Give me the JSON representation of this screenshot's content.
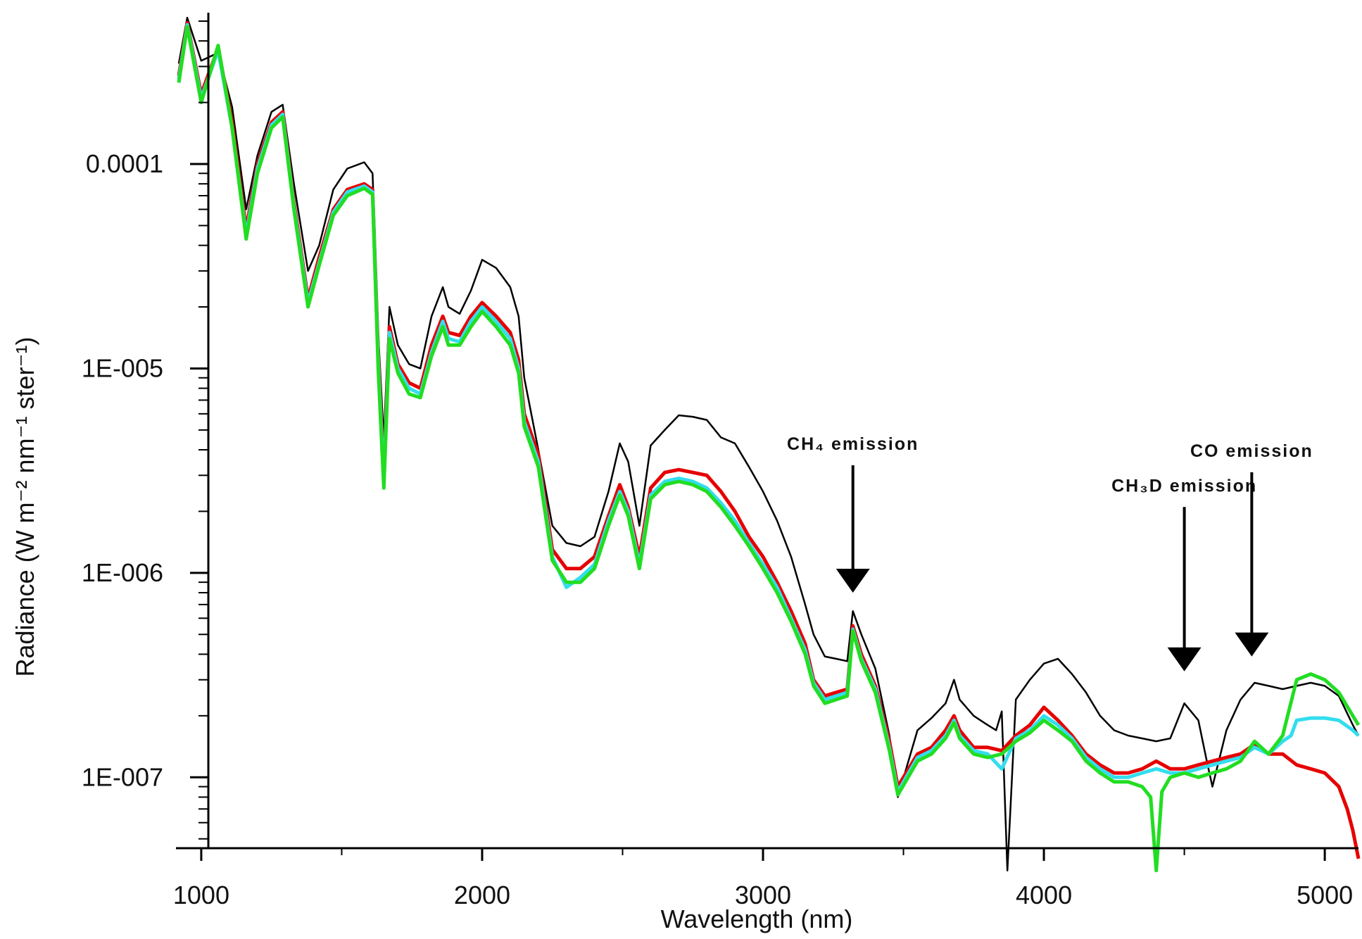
{
  "chart_data": {
    "type": "line",
    "title": "",
    "xlabel": "Wavelength (nm)",
    "ylabel": "Radiance (W m⁻² nm⁻¹ ster⁻¹)",
    "xlim": [
      920,
      5120
    ],
    "ylim": [
      4.5e-08,
      0.00055
    ],
    "yscale": "log",
    "x_ticks": [
      1000,
      2000,
      3000,
      4000,
      5000
    ],
    "x_tick_labels": [
      "1000",
      "2000",
      "3000",
      "4000",
      "5000"
    ],
    "y_ticks": [
      0.0001,
      1e-05,
      1e-06,
      1e-07
    ],
    "y_tick_labels": [
      "0.0001",
      "1E-005",
      "1E-006",
      "1E-007"
    ],
    "grid": false,
    "legend": "none",
    "annotations": [
      {
        "text": "CH₄ emission",
        "x": 3320,
        "y": 4e-06,
        "arrow_to_y": 8e-07
      },
      {
        "text": "CH₃D emission",
        "x": 4500,
        "y": 2.5e-06,
        "arrow_to_y": 3.3e-07
      },
      {
        "text": "CO emission",
        "x": 4740,
        "y": 3.7e-06,
        "arrow_to_y": 3.9e-07
      }
    ],
    "series": [
      {
        "color": "#000000",
        "x": [
          920,
          950,
          1000,
          1060,
          1110,
          1160,
          1200,
          1250,
          1290,
          1330,
          1380,
          1420,
          1470,
          1520,
          1580,
          1610,
          1630,
          1650,
          1670,
          1700,
          1740,
          1780,
          1820,
          1860,
          1880,
          1920,
          1960,
          2000,
          2050,
          2100,
          2130,
          2150,
          2200,
          2250,
          2300,
          2350,
          2400,
          2450,
          2490,
          2520,
          2560,
          2600,
          2650,
          2700,
          2750,
          2800,
          2850,
          2900,
          2950,
          3000,
          3050,
          3100,
          3150,
          3180,
          3220,
          3260,
          3300,
          3320,
          3350,
          3400,
          3450,
          3480,
          3550,
          3600,
          3650,
          3680,
          3700,
          3750,
          3800,
          3830,
          3850,
          3870,
          3900,
          3950,
          4000,
          4050,
          4100,
          4150,
          4200,
          4250,
          4300,
          4350,
          4400,
          4450,
          4500,
          4550,
          4580,
          4600,
          4650,
          4700,
          4750,
          4800,
          4850,
          4900,
          4950,
          5000,
          5050,
          5100,
          5120
        ],
        "y": [
          0.00031,
          0.00052,
          0.00032,
          0.00035,
          0.00019,
          6e-05,
          0.00011,
          0.00018,
          0.000195,
          8e-05,
          3e-05,
          4e-05,
          7.5e-05,
          9.5e-05,
          0.000102,
          9e-05,
          1.5e-05,
          4.5e-06,
          2e-05,
          1.3e-05,
          1.05e-05,
          1e-05,
          1.8e-05,
          2.5e-05,
          2e-05,
          1.85e-05,
          2.4e-05,
          3.4e-05,
          3.1e-05,
          2.5e-05,
          1.8e-05,
          9e-06,
          4e-06,
          1.7e-06,
          1.4e-06,
          1.35e-06,
          1.5e-06,
          2.5e-06,
          4.3e-06,
          3.5e-06,
          1.7e-06,
          4.2e-06,
          5e-06,
          5.9e-06,
          5.8e-06,
          5.6e-06,
          4.6e-06,
          4.3e-06,
          3.3e-06,
          2.5e-06,
          1.8e-06,
          1.2e-06,
          7e-07,
          5e-07,
          3.9e-07,
          3.8e-07,
          3.7e-07,
          6.5e-07,
          5e-07,
          3.4e-07,
          1.6e-07,
          8e-08,
          1.7e-07,
          1.95e-07,
          2.3e-07,
          3e-07,
          2.4e-07,
          2e-07,
          1.8e-07,
          1.7e-07,
          2.1e-07,
          3.5e-08,
          2.4e-07,
          3e-07,
          3.6e-07,
          3.8e-07,
          3.2e-07,
          2.6e-07,
          2e-07,
          1.7e-07,
          1.6e-07,
          1.55e-07,
          1.5e-07,
          1.55e-07,
          2.3e-07,
          1.9e-07,
          1.2e-07,
          9e-08,
          1.7e-07,
          2.4e-07,
          2.9e-07,
          2.8e-07,
          2.7e-07,
          2.8e-07,
          2.9e-07,
          2.8e-07,
          2.5e-07,
          1.8e-07,
          1.6e-07
        ]
      },
      {
        "color": "#e60000",
        "x": [
          920,
          950,
          1000,
          1060,
          1110,
          1160,
          1200,
          1250,
          1290,
          1330,
          1380,
          1420,
          1470,
          1520,
          1580,
          1610,
          1630,
          1650,
          1670,
          1700,
          1740,
          1780,
          1820,
          1860,
          1880,
          1920,
          1960,
          2000,
          2050,
          2100,
          2130,
          2150,
          2200,
          2250,
          2300,
          2350,
          2400,
          2450,
          2490,
          2520,
          2560,
          2600,
          2650,
          2700,
          2750,
          2800,
          2850,
          2900,
          2950,
          3000,
          3050,
          3100,
          3150,
          3180,
          3220,
          3260,
          3300,
          3320,
          3350,
          3400,
          3450,
          3480,
          3550,
          3600,
          3650,
          3680,
          3700,
          3750,
          3800,
          3850,
          3900,
          3950,
          4000,
          4050,
          4100,
          4150,
          4200,
          4250,
          4300,
          4350,
          4400,
          4450,
          4500,
          4550,
          4600,
          4650,
          4700,
          4750,
          4800,
          4850,
          4900,
          4950,
          5000,
          5050,
          5080,
          5100,
          5120
        ],
        "y": [
          0.00027,
          0.00049,
          0.00022,
          0.00037,
          0.00016,
          4.8e-05,
          0.0001,
          0.00016,
          0.00018,
          6.5e-05,
          2.2e-05,
          3.5e-05,
          6e-05,
          7.5e-05,
          8e-05,
          7.5e-05,
          1.2e-05,
          3e-06,
          1.6e-05,
          1.05e-05,
          8.5e-06,
          8e-06,
          1.3e-05,
          1.8e-05,
          1.5e-05,
          1.45e-05,
          1.8e-05,
          2.1e-05,
          1.8e-05,
          1.5e-05,
          1.1e-05,
          6e-06,
          3.8e-06,
          1.3e-06,
          1.05e-06,
          1.05e-06,
          1.2e-06,
          1.9e-06,
          2.7e-06,
          2.1e-06,
          1.2e-06,
          2.6e-06,
          3.1e-06,
          3.2e-06,
          3.1e-06,
          3e-06,
          2.5e-06,
          2e-06,
          1.5e-06,
          1.2e-06,
          9e-07,
          6.5e-07,
          4.5e-07,
          3e-07,
          2.5e-07,
          2.6e-07,
          2.7e-07,
          5.5e-07,
          4e-07,
          2.8e-07,
          1.5e-07,
          9e-08,
          1.3e-07,
          1.4e-07,
          1.7e-07,
          2e-07,
          1.7e-07,
          1.4e-07,
          1.4e-07,
          1.35e-07,
          1.6e-07,
          1.8e-07,
          2.2e-07,
          1.9e-07,
          1.6e-07,
          1.3e-07,
          1.15e-07,
          1.05e-07,
          1.05e-07,
          1.1e-07,
          1.2e-07,
          1.1e-07,
          1.1e-07,
          1.15e-07,
          1.2e-07,
          1.25e-07,
          1.3e-07,
          1.45e-07,
          1.3e-07,
          1.3e-07,
          1.15e-07,
          1.1e-07,
          1.05e-07,
          9e-08,
          7e-08,
          5.5e-08,
          4e-08
        ]
      },
      {
        "color": "#33ddee",
        "x": [
          920,
          950,
          1000,
          1060,
          1110,
          1160,
          1200,
          1250,
          1290,
          1330,
          1380,
          1420,
          1470,
          1520,
          1580,
          1610,
          1630,
          1650,
          1670,
          1700,
          1740,
          1780,
          1820,
          1860,
          1880,
          1920,
          1960,
          2000,
          2050,
          2100,
          2130,
          2150,
          2200,
          2250,
          2300,
          2350,
          2400,
          2450,
          2490,
          2520,
          2560,
          2600,
          2650,
          2700,
          2750,
          2800,
          2850,
          2900,
          2950,
          3000,
          3050,
          3100,
          3150,
          3180,
          3220,
          3260,
          3300,
          3320,
          3350,
          3400,
          3450,
          3480,
          3550,
          3600,
          3650,
          3680,
          3700,
          3750,
          3800,
          3850,
          3900,
          3950,
          4000,
          4050,
          4100,
          4150,
          4200,
          4250,
          4300,
          4350,
          4400,
          4450,
          4500,
          4550,
          4600,
          4650,
          4700,
          4750,
          4800,
          4850,
          4880,
          4900,
          4950,
          5000,
          5050,
          5100,
          5120
        ],
        "y": [
          0.00026,
          0.00048,
          0.00021,
          0.00036,
          0.00015,
          4.5e-05,
          9.5e-05,
          0.000155,
          0.000175,
          6.2e-05,
          2.1e-05,
          3.3e-05,
          5.8e-05,
          7.3e-05,
          7.8e-05,
          7.3e-05,
          1.1e-05,
          2.8e-06,
          1.5e-05,
          1e-05,
          8e-06,
          7.5e-06,
          1.2e-05,
          1.7e-05,
          1.4e-05,
          1.35e-05,
          1.7e-05,
          2e-05,
          1.7e-05,
          1.4e-05,
          1e-05,
          5.5e-06,
          3.5e-06,
          1.2e-06,
          8.5e-07,
          9.5e-07,
          1.1e-06,
          1.8e-06,
          2.5e-06,
          2e-06,
          1.1e-06,
          2.4e-06,
          2.8e-06,
          2.9e-06,
          2.8e-06,
          2.6e-06,
          2.2e-06,
          1.8e-06,
          1.4e-06,
          1.1e-06,
          8.5e-07,
          6e-07,
          4.2e-07,
          2.9e-07,
          2.4e-07,
          2.5e-07,
          2.6e-07,
          5.3e-07,
          3.8e-07,
          2.7e-07,
          1.4e-07,
          8.5e-08,
          1.25e-07,
          1.35e-07,
          1.6e-07,
          1.9e-07,
          1.6e-07,
          1.35e-07,
          1.3e-07,
          1.1e-07,
          1.55e-07,
          1.7e-07,
          2e-07,
          1.8e-07,
          1.55e-07,
          1.25e-07,
          1.1e-07,
          1e-07,
          1e-07,
          1.05e-07,
          1.1e-07,
          1.05e-07,
          1.05e-07,
          1.1e-07,
          1.15e-07,
          1.2e-07,
          1.25e-07,
          1.4e-07,
          1.3e-07,
          1.5e-07,
          1.6e-07,
          1.9e-07,
          1.95e-07,
          1.95e-07,
          1.9e-07,
          1.7e-07,
          1.6e-07
        ]
      },
      {
        "color": "#22dd22",
        "x": [
          920,
          950,
          1000,
          1060,
          1110,
          1160,
          1200,
          1250,
          1290,
          1330,
          1380,
          1420,
          1470,
          1520,
          1580,
          1610,
          1630,
          1650,
          1670,
          1700,
          1740,
          1780,
          1820,
          1860,
          1880,
          1920,
          1960,
          2000,
          2050,
          2100,
          2130,
          2150,
          2200,
          2250,
          2300,
          2350,
          2400,
          2450,
          2490,
          2520,
          2560,
          2600,
          2650,
          2700,
          2750,
          2800,
          2850,
          2900,
          2950,
          3000,
          3050,
          3100,
          3150,
          3180,
          3220,
          3260,
          3300,
          3320,
          3350,
          3400,
          3450,
          3480,
          3550,
          3600,
          3650,
          3680,
          3700,
          3750,
          3800,
          3850,
          3900,
          3950,
          4000,
          4050,
          4100,
          4150,
          4200,
          4250,
          4300,
          4350,
          4380,
          4400,
          4420,
          4450,
          4500,
          4550,
          4600,
          4650,
          4700,
          4750,
          4800,
          4850,
          4900,
          4950,
          5000,
          5050,
          5100,
          5120
        ],
        "y": [
          0.00025,
          0.00047,
          0.0002,
          0.00038,
          0.00015,
          4.3e-05,
          9e-05,
          0.00015,
          0.00017,
          6e-05,
          2e-05,
          3.2e-05,
          5.6e-05,
          7e-05,
          7.6e-05,
          7.1e-05,
          1e-05,
          2.6e-06,
          1.4e-05,
          9.5e-06,
          7.5e-06,
          7.2e-06,
          1.15e-05,
          1.6e-05,
          1.3e-05,
          1.3e-05,
          1.6e-05,
          1.9e-05,
          1.6e-05,
          1.3e-05,
          9.5e-06,
          5.2e-06,
          3.3e-06,
          1.15e-06,
          9e-07,
          9e-07,
          1.05e-06,
          1.7e-06,
          2.4e-06,
          1.9e-06,
          1.05e-06,
          2.3e-06,
          2.7e-06,
          2.8e-06,
          2.7e-06,
          2.5e-06,
          2.1e-06,
          1.7e-06,
          1.35e-06,
          1.05e-06,
          8e-07,
          5.8e-07,
          4e-07,
          2.8e-07,
          2.3e-07,
          2.4e-07,
          2.5e-07,
          5.2e-07,
          3.7e-07,
          2.6e-07,
          1.35e-07,
          8.2e-08,
          1.2e-07,
          1.3e-07,
          1.55e-07,
          1.85e-07,
          1.55e-07,
          1.3e-07,
          1.25e-07,
          1.3e-07,
          1.5e-07,
          1.65e-07,
          1.9e-07,
          1.7e-07,
          1.5e-07,
          1.2e-07,
          1.05e-07,
          9.5e-08,
          9.5e-08,
          9e-08,
          8e-08,
          3.5e-08,
          8.5e-08,
          1e-07,
          1.05e-07,
          1e-07,
          1.05e-07,
          1.1e-07,
          1.2e-07,
          1.5e-07,
          1.3e-07,
          1.6e-07,
          3e-07,
          3.2e-07,
          3e-07,
          2.6e-07,
          2e-07,
          1.8e-07
        ]
      }
    ]
  }
}
